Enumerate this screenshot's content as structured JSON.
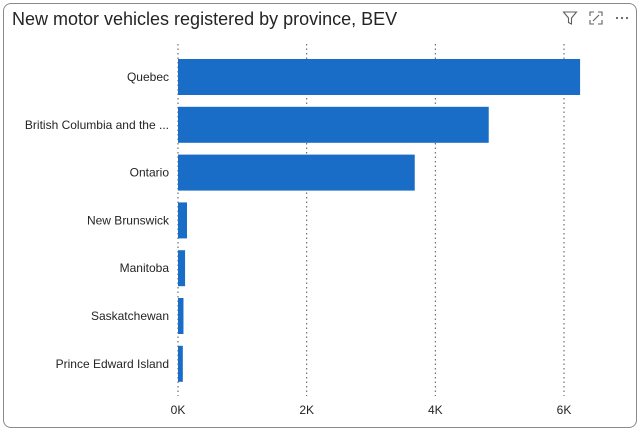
{
  "header": {
    "title": "New motor vehicles registered by province, BEV",
    "icons": [
      "filter-icon",
      "focus-mode-icon",
      "more-options-icon"
    ]
  },
  "colors": {
    "bar": "#1a6dc7",
    "grid": "#555555"
  },
  "chart_data": {
    "type": "bar",
    "orientation": "horizontal",
    "title": "New motor vehicles registered by province, BEV",
    "categories": [
      "Quebec",
      "British Columbia and the ...",
      "Ontario",
      "New Brunswick",
      "Manitoba",
      "Saskatchewan",
      "Prince Edward Island"
    ],
    "values": [
      6250,
      4830,
      3680,
      140,
      110,
      85,
      75
    ],
    "xlim": [
      0,
      6500
    ],
    "xticks": [
      0,
      2000,
      4000,
      6000
    ],
    "xtick_labels": [
      "0K",
      "2K",
      "4K",
      "6K"
    ],
    "grid": true,
    "legend": "none"
  }
}
